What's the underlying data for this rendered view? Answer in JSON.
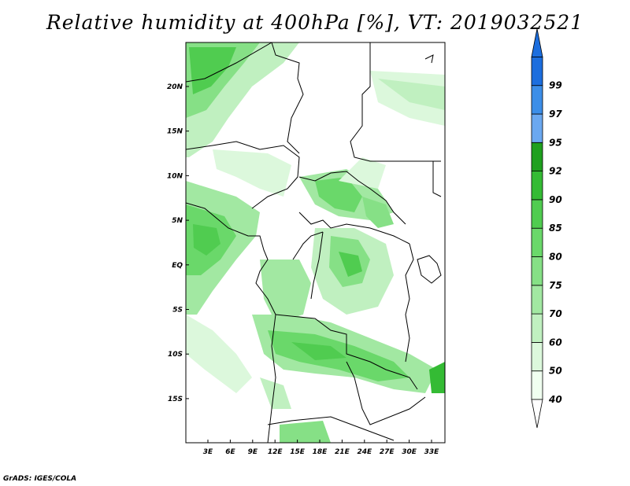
{
  "title": "Relative humidity at 400hPa [%], VT: 2019032521",
  "credit": "GrADS: IGES/COLA",
  "map": {
    "lat_ticks": [
      "20N",
      "15N",
      "10N",
      "5N",
      "EQ",
      "5S",
      "10S",
      "15S"
    ],
    "lon_ticks": [
      "3E",
      "6E",
      "9E",
      "12E",
      "15E",
      "18E",
      "21E",
      "24E",
      "27E",
      "30E",
      "33E"
    ]
  },
  "colorbar": {
    "levels": [
      "40",
      "50",
      "60",
      "70",
      "75",
      "80",
      "85",
      "90",
      "92",
      "95",
      "97",
      "99"
    ],
    "colors": [
      "#f0fff0",
      "#dcf8dc",
      "#c0f0c0",
      "#a2e8a2",
      "#86e086",
      "#6ad86a",
      "#50cc50",
      "#34bb34",
      "#1fa01f",
      "#6ba8f0",
      "#3c8ee8",
      "#1c6ede"
    ]
  }
}
